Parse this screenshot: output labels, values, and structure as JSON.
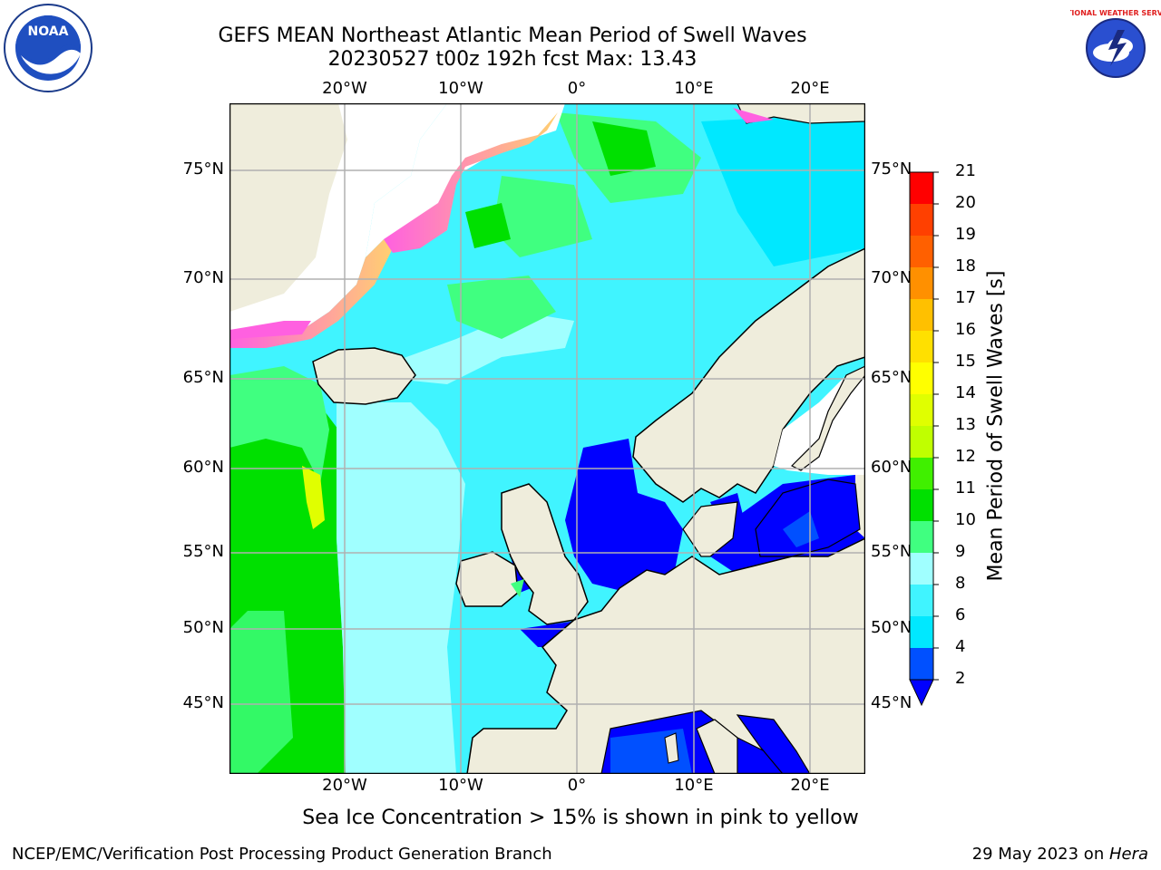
{
  "title": {
    "line1": "GEFS MEAN Northeast Atlantic Mean Period of Swell Waves",
    "line2": "20230527 t00z 192h fcst   Max: 13.43"
  },
  "axes": {
    "top_lon_labels": [
      "20°W",
      "10°W",
      "0°",
      "10°E",
      "20°E"
    ],
    "bottom_lon_labels": [
      "20°W",
      "10°W",
      "0°",
      "10°E",
      "20°E"
    ],
    "left_lat_labels": [
      "75°N",
      "70°N",
      "65°N",
      "60°N",
      "55°N",
      "50°N",
      "45°N"
    ],
    "right_lat_labels": [
      "75°N",
      "70°N",
      "65°N",
      "60°N",
      "55°N",
      "50°N",
      "45°N"
    ]
  },
  "colorbar": {
    "label": "Mean Period of Swell Waves [s]",
    "ticks": [
      "2",
      "4",
      "6",
      "8",
      "9",
      "10",
      "11",
      "12",
      "13",
      "14",
      "15",
      "16",
      "17",
      "18",
      "19",
      "20",
      "21"
    ],
    "colors": [
      "#0050ff",
      "#00e8ff",
      "#40f4ff",
      "#a0ffff",
      "#40ff80",
      "#00e000",
      "#40f000",
      "#c0ff00",
      "#e0ff00",
      "#ffff00",
      "#ffe000",
      "#ffc000",
      "#ff9000",
      "#ff6000",
      "#ff4000",
      "#ff0000"
    ],
    "under_color": "#0000ff"
  },
  "note": "Sea Ice Concentration > 15% is shown in pink to yellow",
  "footer": {
    "left": "NCEP/EMC/Verification Post Processing Product Generation Branch",
    "right_prefix": "29 May 2023 on ",
    "right_machine": "Hera"
  },
  "colors": {
    "land": "#efeddc",
    "ice_pink": "#ff60e0",
    "ice_yellow": "#ffd070",
    "grid": "#b0b0b0"
  },
  "logos": {
    "noaa_text": "NOAA",
    "nws_text": "NATIONAL WEATHER SERVICE"
  }
}
